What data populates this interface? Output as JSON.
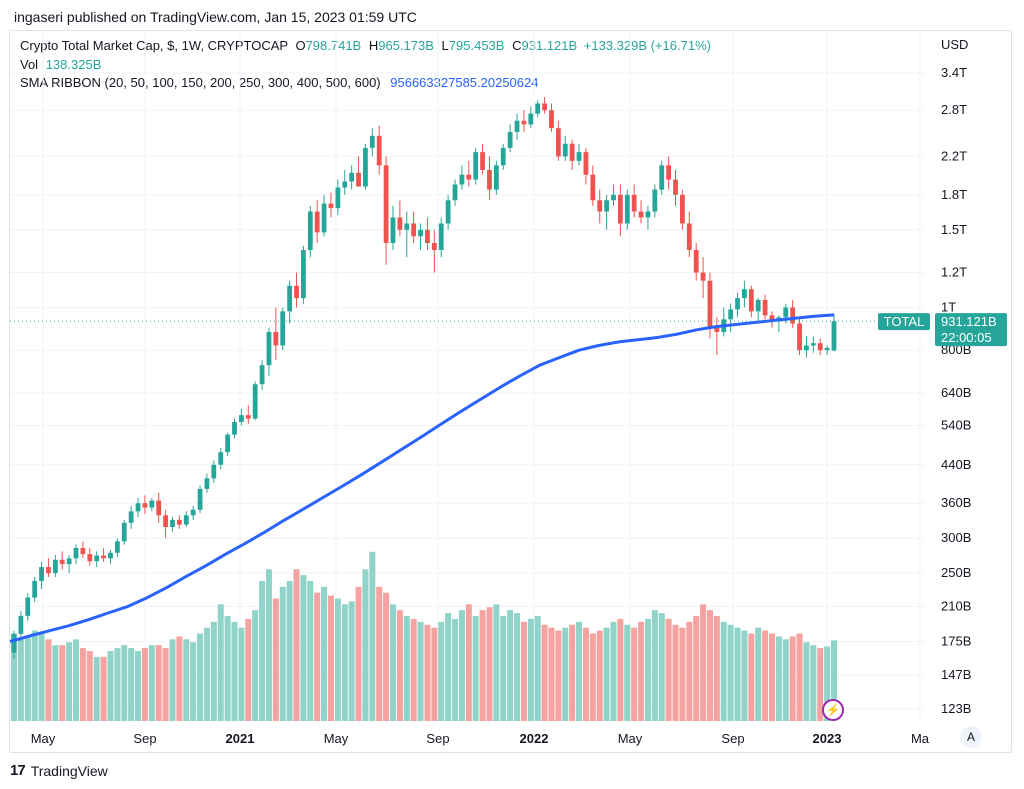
{
  "header": {
    "published": "ingaseri published on TradingView.com, Jan 15, 2023 01:59 UTC"
  },
  "legend": {
    "title": "Crypto Total Market Cap, $, 1W, CRYPTOCAP",
    "o_label": "O",
    "o_val": "798.741B",
    "h_label": "H",
    "h_val": "965.173B",
    "l_label": "L",
    "l_val": "795.453B",
    "c_label": "C",
    "c_val": "931.121B",
    "change": "+133.329B (+16.71%)",
    "vol_label": "Vol",
    "vol_val": "138.325B",
    "sma_label": "SMA RIBBON (20, 50, 100, 150, 200, 250, 300, 400, 500, 600)",
    "sma_val": "956663327585.20250624"
  },
  "price_axis": {
    "currency": "USD",
    "ticks": [
      "3.4T",
      "2.8T",
      "2.2T",
      "1.8T",
      "1.5T",
      "1.2T",
      "1T",
      "800B",
      "640B",
      "540B",
      "440B",
      "360B",
      "300B",
      "250B",
      "210B",
      "175B",
      "147B",
      "123B"
    ],
    "tag_symbol": "TOTAL",
    "tag_price": "931.121B",
    "tag_timer": "22:00:05"
  },
  "time_axis": {
    "labels": [
      "May",
      "Sep",
      "2021",
      "May",
      "Sep",
      "2022",
      "May",
      "Sep",
      "2023",
      "Ma"
    ]
  },
  "footer": {
    "brand": "TradingView",
    "auto_scale": "A"
  },
  "colors": {
    "up": "#26a69a",
    "down": "#ef5350",
    "sma": "#2962ff",
    "vol_up": "#8fd3c9",
    "vol_down": "#f5a3a1"
  },
  "chart_data": {
    "type": "candlestick",
    "symbol": "Crypto Total Market Cap",
    "interval": "1W",
    "y_scale": "log",
    "ylim": [
      115,
      3600
    ],
    "unit": "B USD",
    "candles_ohlc_approx": [
      [
        165,
        185,
        160,
        182
      ],
      [
        182,
        205,
        175,
        200
      ],
      [
        200,
        225,
        195,
        220
      ],
      [
        220,
        245,
        215,
        240
      ],
      [
        240,
        265,
        230,
        258
      ],
      [
        258,
        270,
        245,
        250
      ],
      [
        250,
        275,
        245,
        268
      ],
      [
        268,
        280,
        255,
        262
      ],
      [
        262,
        275,
        250,
        270
      ],
      [
        270,
        290,
        262,
        285
      ],
      [
        285,
        295,
        270,
        276
      ],
      [
        276,
        285,
        260,
        266
      ],
      [
        266,
        280,
        258,
        274
      ],
      [
        274,
        285,
        265,
        270
      ],
      [
        270,
        282,
        262,
        278
      ],
      [
        278,
        300,
        272,
        295
      ],
      [
        295,
        330,
        290,
        325
      ],
      [
        325,
        355,
        315,
        345
      ],
      [
        345,
        370,
        335,
        360
      ],
      [
        360,
        375,
        340,
        352
      ],
      [
        352,
        370,
        345,
        365
      ],
      [
        365,
        380,
        325,
        338
      ],
      [
        338,
        348,
        300,
        318
      ],
      [
        318,
        335,
        310,
        330
      ],
      [
        330,
        338,
        315,
        322
      ],
      [
        322,
        345,
        318,
        338
      ],
      [
        338,
        355,
        330,
        348
      ],
      [
        348,
        395,
        342,
        388
      ],
      [
        388,
        420,
        380,
        410
      ],
      [
        410,
        450,
        400,
        440
      ],
      [
        440,
        480,
        430,
        470
      ],
      [
        470,
        520,
        460,
        515
      ],
      [
        515,
        560,
        505,
        550
      ],
      [
        550,
        590,
        540,
        570
      ],
      [
        570,
        600,
        545,
        560
      ],
      [
        560,
        680,
        555,
        670
      ],
      [
        670,
        760,
        650,
        740
      ],
      [
        740,
        900,
        700,
        880
      ],
      [
        880,
        1000,
        760,
        820
      ],
      [
        820,
        1000,
        800,
        980
      ],
      [
        980,
        1150,
        920,
        1120
      ],
      [
        1120,
        1200,
        1000,
        1050
      ],
      [
        1050,
        1380,
        1020,
        1350
      ],
      [
        1350,
        1700,
        1300,
        1650
      ],
      [
        1650,
        1750,
        1400,
        1480
      ],
      [
        1480,
        1800,
        1450,
        1720
      ],
      [
        1720,
        1820,
        1600,
        1680
      ],
      [
        1680,
        1950,
        1620,
        1870
      ],
      [
        1870,
        2050,
        1800,
        1930
      ],
      [
        1930,
        2100,
        1850,
        2020
      ],
      [
        2020,
        2200,
        1900,
        1880
      ],
      [
        1880,
        2350,
        1850,
        2300
      ],
      [
        2300,
        2550,
        2200,
        2450
      ],
      [
        2450,
        2580,
        2000,
        2100
      ],
      [
        2100,
        2200,
        1250,
        1400
      ],
      [
        1400,
        1700,
        1350,
        1600
      ],
      [
        1600,
        1750,
        1450,
        1500
      ],
      [
        1500,
        1650,
        1300,
        1550
      ],
      [
        1550,
        1650,
        1400,
        1450
      ],
      [
        1450,
        1550,
        1350,
        1500
      ],
      [
        1500,
        1600,
        1350,
        1400
      ],
      [
        1400,
        1500,
        1200,
        1350
      ],
      [
        1350,
        1600,
        1300,
        1550
      ],
      [
        1550,
        1800,
        1500,
        1750
      ],
      [
        1750,
        1950,
        1700,
        1900
      ],
      [
        1900,
        2100,
        1850,
        2000
      ],
      [
        2000,
        2150,
        1880,
        1950
      ],
      [
        1950,
        2300,
        1900,
        2250
      ],
      [
        2250,
        2350,
        2000,
        2050
      ],
      [
        2050,
        2200,
        1750,
        1850
      ],
      [
        1850,
        2150,
        1800,
        2100
      ],
      [
        2100,
        2350,
        2050,
        2300
      ],
      [
        2300,
        2600,
        2250,
        2500
      ],
      [
        2500,
        2750,
        2400,
        2650
      ],
      [
        2650,
        2800,
        2500,
        2600
      ],
      [
        2600,
        2850,
        2550,
        2750
      ],
      [
        2750,
        2950,
        2700,
        2900
      ],
      [
        2900,
        3000,
        2750,
        2800
      ],
      [
        2800,
        2900,
        2500,
        2550
      ],
      [
        2550,
        2650,
        2150,
        2200
      ],
      [
        2200,
        2450,
        2150,
        2350
      ],
      [
        2350,
        2400,
        2050,
        2150
      ],
      [
        2150,
        2350,
        2100,
        2250
      ],
      [
        2250,
        2300,
        1900,
        2000
      ],
      [
        2000,
        2100,
        1700,
        1750
      ],
      [
        1750,
        1850,
        1550,
        1650
      ],
      [
        1650,
        1800,
        1500,
        1750
      ],
      [
        1750,
        1900,
        1700,
        1800
      ],
      [
        1800,
        1900,
        1450,
        1550
      ],
      [
        1550,
        1850,
        1500,
        1800
      ],
      [
        1800,
        1900,
        1600,
        1650
      ],
      [
        1650,
        1750,
        1550,
        1600
      ],
      [
        1600,
        1700,
        1500,
        1650
      ],
      [
        1650,
        1900,
        1600,
        1850
      ],
      [
        1850,
        2150,
        1800,
        2100
      ],
      [
        2100,
        2200,
        1850,
        1950
      ],
      [
        1950,
        2050,
        1700,
        1800
      ],
      [
        1800,
        1850,
        1500,
        1550
      ],
      [
        1550,
        1650,
        1300,
        1350
      ],
      [
        1350,
        1400,
        1150,
        1200
      ],
      [
        1200,
        1300,
        1050,
        1150
      ],
      [
        1150,
        1200,
        850,
        900
      ],
      [
        900,
        950,
        780,
        880
      ],
      [
        880,
        1000,
        860,
        940
      ],
      [
        940,
        1020,
        880,
        990
      ],
      [
        990,
        1080,
        950,
        1050
      ],
      [
        1050,
        1150,
        1000,
        1100
      ],
      [
        1100,
        1120,
        950,
        980
      ],
      [
        980,
        1050,
        920,
        1040
      ],
      [
        1040,
        1070,
        940,
        960
      ],
      [
        960,
        980,
        900,
        930
      ],
      [
        930,
        960,
        880,
        950
      ],
      [
        950,
        1020,
        920,
        1000
      ],
      [
        1000,
        1040,
        900,
        920
      ],
      [
        920,
        950,
        780,
        800
      ],
      [
        800,
        860,
        770,
        820
      ],
      [
        820,
        860,
        790,
        830
      ],
      [
        830,
        850,
        780,
        800
      ],
      [
        800,
        820,
        780,
        810
      ],
      [
        798.741,
        965.173,
        795.453,
        931.121
      ]
    ],
    "sma_approx": [
      175,
      180,
      185,
      190,
      196,
      203,
      210,
      220,
      232,
      246,
      260,
      276,
      292,
      310,
      330,
      350,
      372,
      395,
      420,
      448,
      478,
      510,
      545,
      582,
      620,
      660,
      700,
      740,
      770,
      800,
      820,
      835,
      845,
      855,
      870,
      890,
      905,
      915,
      925,
      935,
      945,
      955,
      962
    ],
    "volume_approx": [
      150,
      140,
      145,
      155,
      150,
      140,
      130,
      130,
      135,
      140,
      125,
      120,
      110,
      110,
      120,
      125,
      130,
      125,
      120,
      125,
      130,
      130,
      125,
      140,
      145,
      140,
      135,
      150,
      160,
      170,
      200,
      180,
      170,
      160,
      175,
      190,
      240,
      260,
      210,
      230,
      240,
      260,
      250,
      240,
      220,
      230,
      215,
      210,
      200,
      205,
      230,
      260,
      290,
      230,
      220,
      200,
      190,
      180,
      175,
      170,
      165,
      160,
      170,
      185,
      175,
      190,
      200,
      180,
      190,
      195,
      200,
      180,
      190,
      185,
      170,
      175,
      180,
      165,
      160,
      155,
      160,
      165,
      170,
      160,
      150,
      155,
      160,
      170,
      175,
      165,
      160,
      170,
      175,
      190,
      185,
      175,
      165,
      160,
      170,
      180,
      200,
      190,
      180,
      170,
      165,
      160,
      155,
      150,
      160,
      155,
      150,
      145,
      140,
      145,
      150,
      135,
      130,
      125,
      128,
      138.325
    ],
    "last_close": "931.121B"
  }
}
